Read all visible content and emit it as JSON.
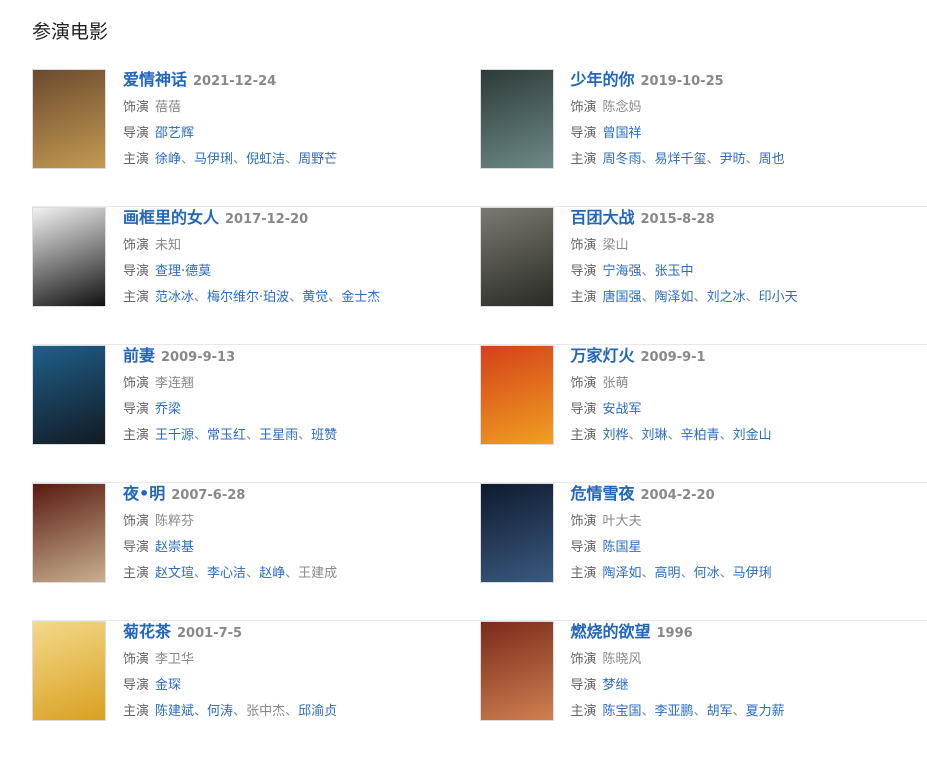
{
  "section_title": "参演电影",
  "labels": {
    "role": "饰演",
    "director": "导演",
    "cast": "主演"
  },
  "movies": [
    {
      "name": "爱情神话",
      "date": "2021-12-24",
      "role": "蓓蓓",
      "poster_colors": [
        "#6b4a2e",
        "#c49a52"
      ],
      "directors": [
        {
          "name": "邵艺辉",
          "link": true
        }
      ],
      "cast": [
        {
          "name": "徐峥",
          "link": true
        },
        {
          "name": "马伊琍",
          "link": true
        },
        {
          "name": "倪虹洁",
          "link": true
        },
        {
          "name": "周野芒",
          "link": true
        }
      ]
    },
    {
      "name": "少年的你",
      "date": "2019-10-25",
      "role": "陈念妈",
      "poster_colors": [
        "#2d3a3a",
        "#6d8a86"
      ],
      "directors": [
        {
          "name": "曾国祥",
          "link": true
        }
      ],
      "cast": [
        {
          "name": "周冬雨",
          "link": true
        },
        {
          "name": "易烊千玺",
          "link": true
        },
        {
          "name": "尹昉",
          "link": true
        },
        {
          "name": "周也",
          "link": true
        }
      ]
    },
    {
      "name": "画框里的女人",
      "date": "2017-12-20",
      "role": "未知",
      "poster_colors": [
        "#f2f2f2",
        "#111111"
      ],
      "directors": [
        {
          "name": "查理·德莫",
          "link": true
        }
      ],
      "cast": [
        {
          "name": "范冰冰",
          "link": true
        },
        {
          "name": "梅尔维尔·珀波",
          "link": true
        },
        {
          "name": "黄觉",
          "link": true
        },
        {
          "name": "金士杰",
          "link": true
        }
      ]
    },
    {
      "name": "百团大战",
      "date": "2015-8-28",
      "role": "梁山",
      "poster_colors": [
        "#7a7a70",
        "#2a2a26"
      ],
      "directors": [
        {
          "name": "宁海强",
          "link": true
        },
        {
          "name": "张玉中",
          "link": true
        }
      ],
      "cast": [
        {
          "name": "唐国强",
          "link": true
        },
        {
          "name": "陶泽如",
          "link": true
        },
        {
          "name": "刘之冰",
          "link": true
        },
        {
          "name": "印小天",
          "link": true
        }
      ]
    },
    {
      "name": "前妻",
      "date": "2009-9-13",
      "role": "李连翘",
      "poster_colors": [
        "#1f5f8a",
        "#111a22"
      ],
      "directors": [
        {
          "name": "乔梁",
          "link": true
        }
      ],
      "cast": [
        {
          "name": "王千源",
          "link": true
        },
        {
          "name": "常玉红",
          "link": true
        },
        {
          "name": "王星雨",
          "link": true
        },
        {
          "name": "班赞",
          "link": true
        }
      ]
    },
    {
      "name": "万家灯火",
      "date": "2009-9-1",
      "role": "张萌",
      "poster_colors": [
        "#d4401a",
        "#f0a020"
      ],
      "directors": [
        {
          "name": "安战军",
          "link": true
        }
      ],
      "cast": [
        {
          "name": "刘桦",
          "link": true
        },
        {
          "name": "刘琳",
          "link": true
        },
        {
          "name": "辛柏青",
          "link": true
        },
        {
          "name": "刘金山",
          "link": true
        }
      ]
    },
    {
      "name": "夜•明",
      "date": "2007-6-28",
      "role": "陈粹芬",
      "poster_colors": [
        "#5a1a10",
        "#c8b090"
      ],
      "directors": [
        {
          "name": "赵崇基",
          "link": true
        }
      ],
      "cast": [
        {
          "name": "赵文瑄",
          "link": true
        },
        {
          "name": "李心洁",
          "link": true
        },
        {
          "name": "赵峥",
          "link": true
        },
        {
          "name": "王建成",
          "link": false
        }
      ]
    },
    {
      "name": "危情雪夜",
      "date": "2004-2-20",
      "role": "叶大夫",
      "poster_colors": [
        "#0e1a2e",
        "#3a5a80"
      ],
      "directors": [
        {
          "name": "陈国星",
          "link": true
        }
      ],
      "cast": [
        {
          "name": "陶泽如",
          "link": true
        },
        {
          "name": "高明",
          "link": true
        },
        {
          "name": "何冰",
          "link": true
        },
        {
          "name": "马伊琍",
          "link": true
        }
      ]
    },
    {
      "name": "菊花茶",
      "date": "2001-7-5",
      "role": "李卫华",
      "poster_colors": [
        "#f3d98a",
        "#d9a020"
      ],
      "directors": [
        {
          "name": "金琛",
          "link": true
        }
      ],
      "cast": [
        {
          "name": "陈建斌",
          "link": true
        },
        {
          "name": "何涛",
          "link": true
        },
        {
          "name": "张中杰",
          "link": false
        },
        {
          "name": "邱渝贞",
          "link": true
        }
      ]
    },
    {
      "name": "燃烧的欲望",
      "date": "1996",
      "role": "陈晓风",
      "poster_colors": [
        "#7a2a1a",
        "#d08050"
      ],
      "directors": [
        {
          "name": "梦继",
          "link": true
        }
      ],
      "cast": [
        {
          "name": "陈宝国",
          "link": true
        },
        {
          "name": "李亚鹏",
          "link": true
        },
        {
          "name": "胡军",
          "link": true
        },
        {
          "name": "夏力薪",
          "link": true
        }
      ]
    }
  ]
}
